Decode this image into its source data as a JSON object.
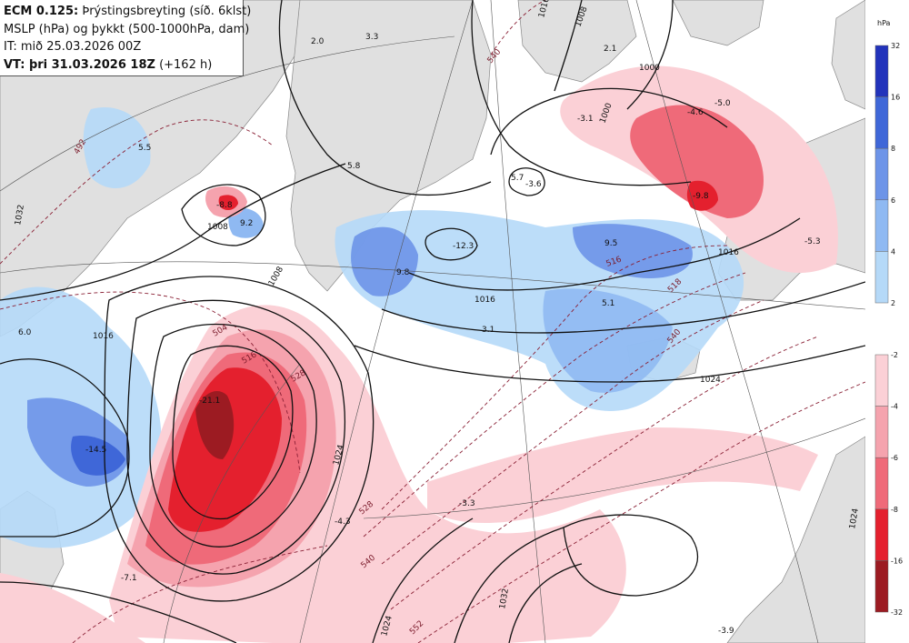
{
  "header": {
    "model": "ECM 0.125:",
    "title_rest": " Þrýstingsbreyting (síð. 6klst)",
    "line2": "MSLP (hPa) og þykkt (500-1000hPa, dam)",
    "line3": "IT: mið 25.03.2026 00Z",
    "vt_bold": "VT: þri 31.03.2026 18Z",
    "vt_rest": " (+162 h)"
  },
  "legend": {
    "unit": "hPa",
    "positive": [
      "32",
      "16",
      "8",
      "6",
      "4",
      "2"
    ],
    "negative": [
      "-2",
      "-4",
      "-6",
      "-8",
      "-16",
      "-32"
    ],
    "positive_colors": [
      "#2233bb",
      "#3f67d8",
      "#6d94e8",
      "#8fb9f2",
      "#b5d9f8"
    ],
    "negative_colors": [
      "#fbd0d6",
      "#f5a3ae",
      "#ef6a79",
      "#e4202e",
      "#9c1b22"
    ]
  },
  "values": [
    "2.0",
    "3.3",
    "2.1",
    "5.5",
    "5.8",
    "-3.1",
    "-5.0",
    "-4.6",
    "5.7",
    "-3.6",
    "-8.8",
    "-9.8",
    "9.2",
    "-12.3",
    "9.8",
    "9.5",
    "5.1",
    "3.1",
    "6.0",
    "-21.1",
    "-14.5",
    "-3.3",
    "-4.3",
    "-7.1",
    "-3.9",
    "-5.3"
  ],
  "isobars": [
    "1000",
    "1008",
    "1016",
    "1016",
    "1008",
    "1000",
    "1016",
    "1024",
    "1024",
    "1032",
    "1024",
    "1024",
    "1032",
    "1008",
    "1016"
  ],
  "thickness": [
    "492",
    "504",
    "516",
    "516",
    "528",
    "540",
    "540",
    "552",
    "528",
    "518",
    "540"
  ]
}
